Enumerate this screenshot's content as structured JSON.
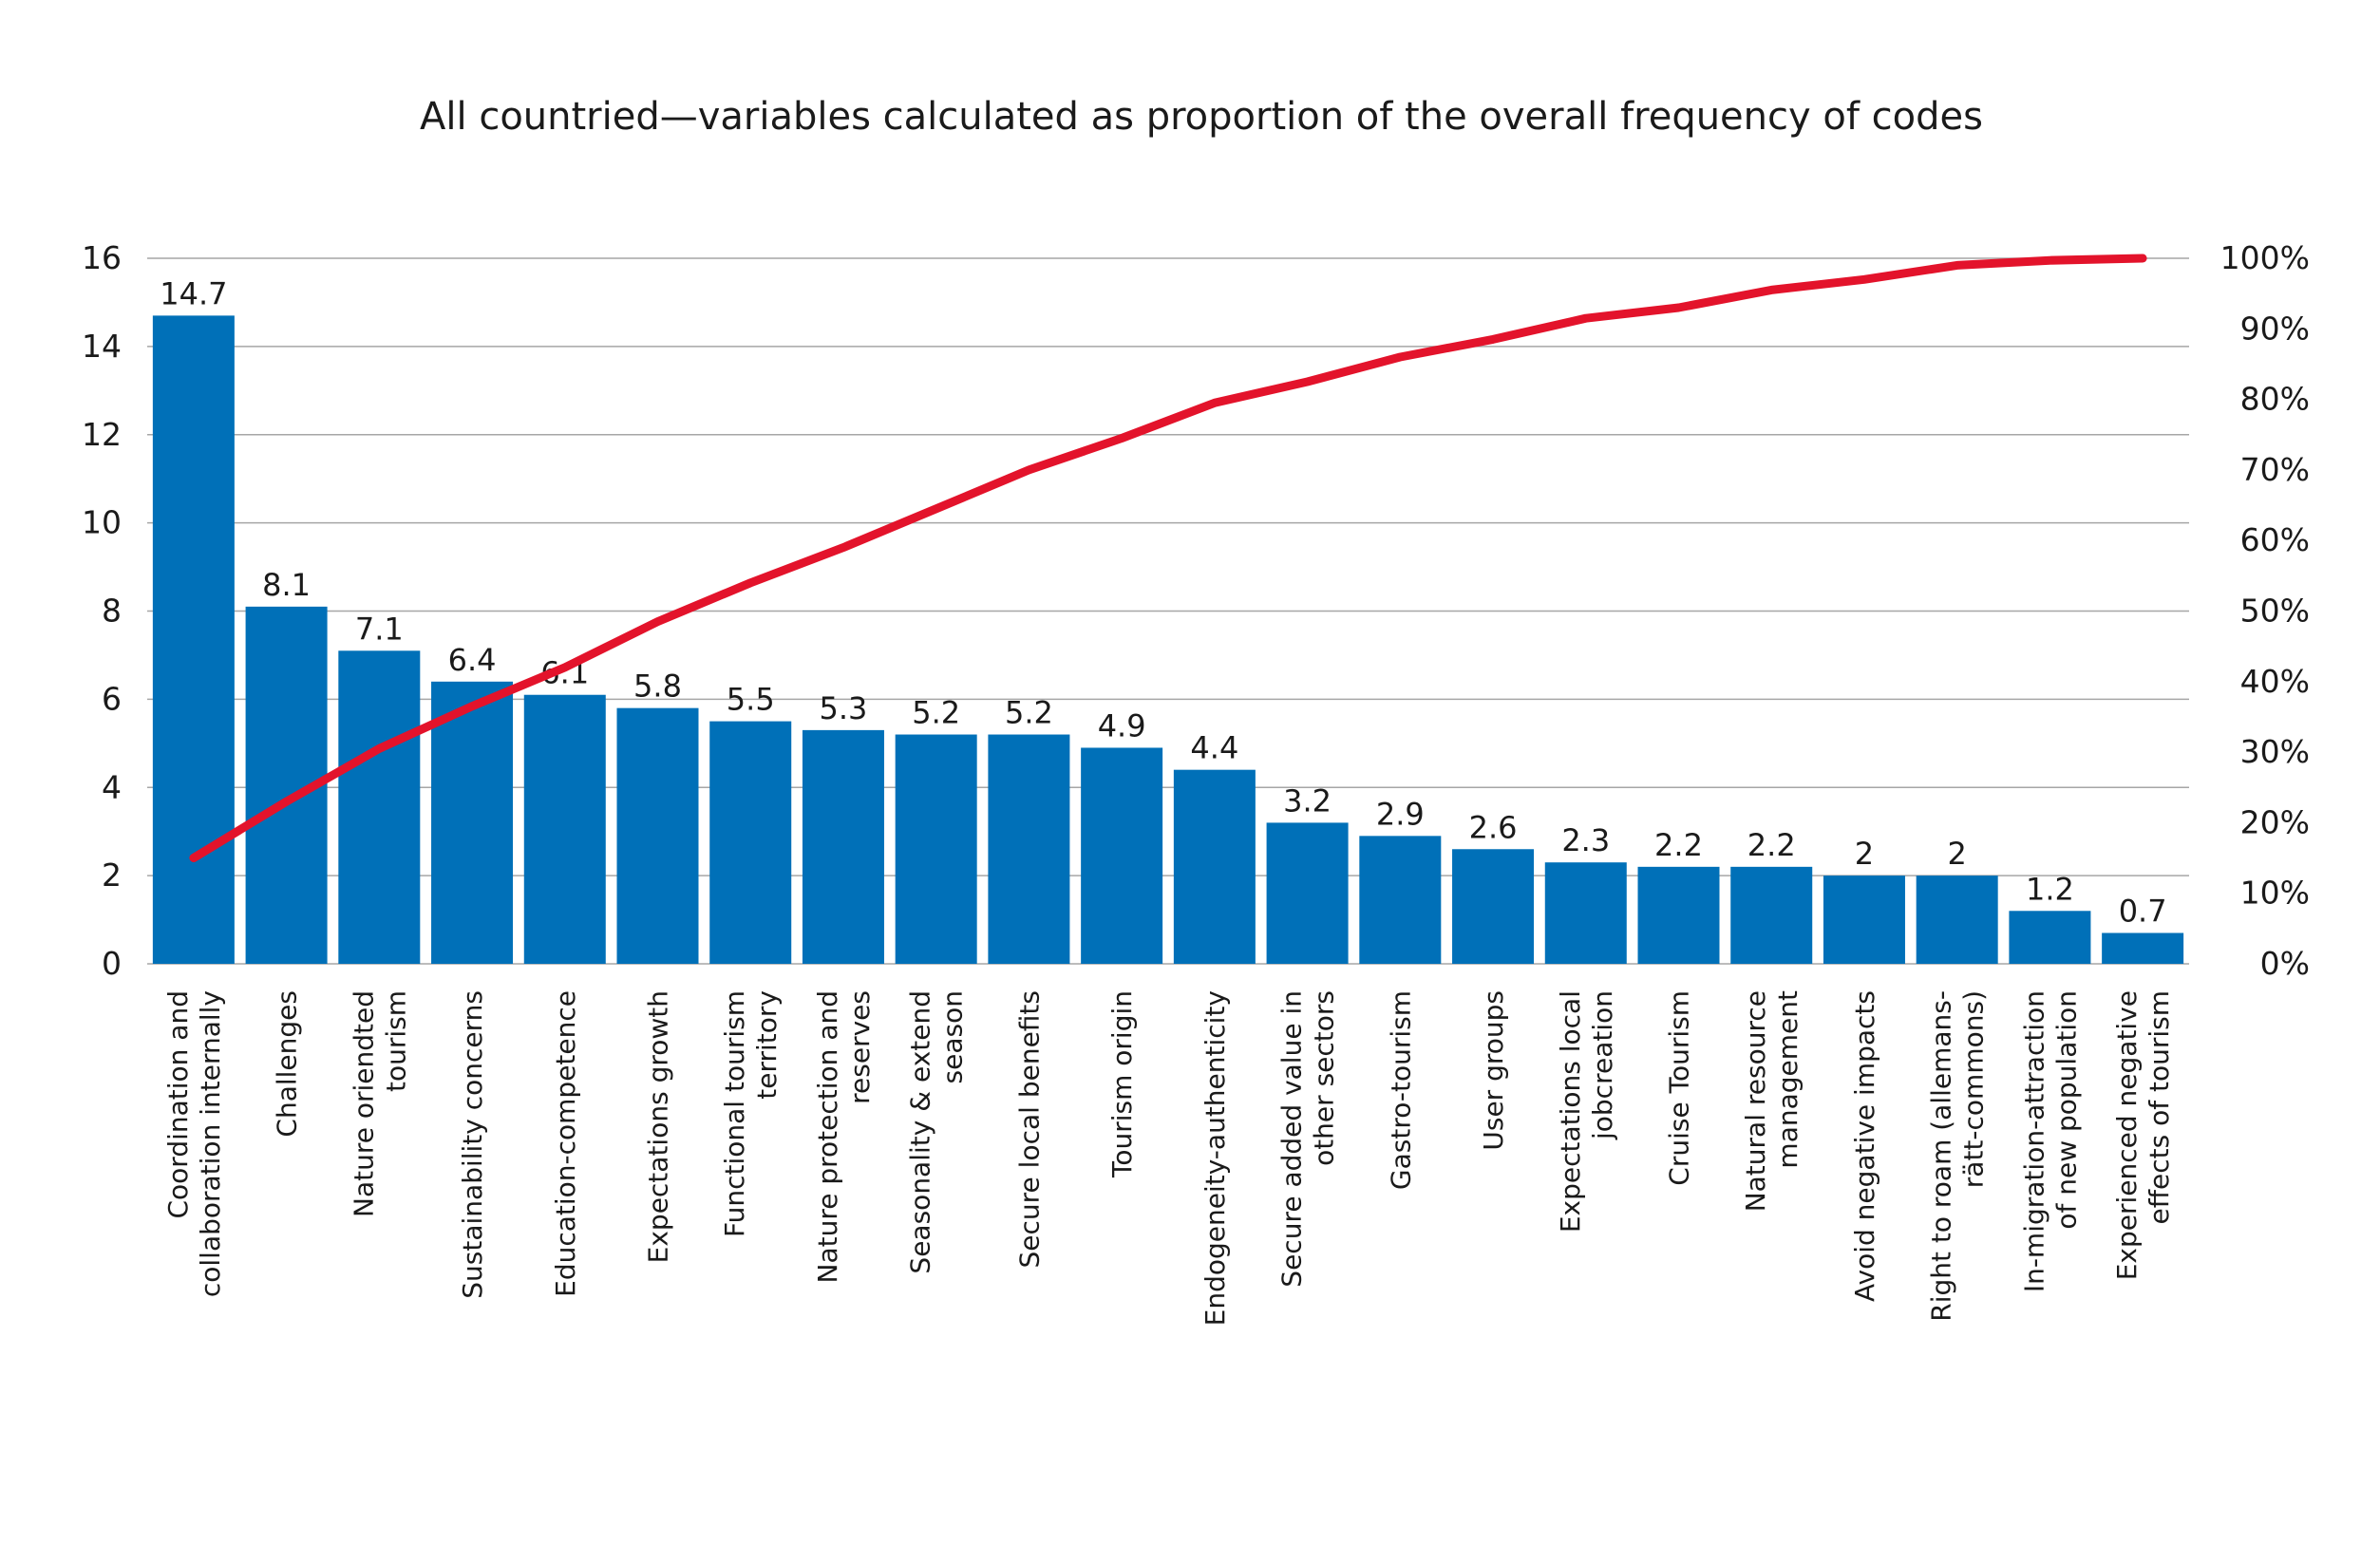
{
  "chart_data": {
    "type": "bar",
    "title": "All countried—variables calculated as proportion of the overall frequency of codes",
    "categories": [
      [
        "Coordination and",
        "collaboration internally"
      ],
      [
        "Challenges"
      ],
      [
        "Nature oriendted",
        "tourism"
      ],
      [
        "Sustainability concerns"
      ],
      [
        "Education-competence"
      ],
      [
        "Expectations growth"
      ],
      [
        "Functional tourism",
        "territory"
      ],
      [
        "Nature protection and",
        "reserves"
      ],
      [
        "Seasonality & extend",
        "season"
      ],
      [
        "Secure local benefits"
      ],
      [
        "Tourism origin"
      ],
      [
        "Endogeneity-authenticity"
      ],
      [
        "Secure added value in",
        "other sectors"
      ],
      [
        "Gastro-tourism"
      ],
      [
        "User groups"
      ],
      [
        "Expectations local",
        "jobcreation"
      ],
      [
        "Cruise Tourism"
      ],
      [
        "Natural resource",
        "management"
      ],
      [
        "Avoid negative impacts"
      ],
      [
        "Right to roam (allemans-",
        "rätt-commons)"
      ],
      [
        "In-migration-attraction",
        "of new population"
      ],
      [
        "Experienced negative",
        "effects of tourism"
      ]
    ],
    "series": [
      {
        "type": "bar",
        "values": [
          14.7,
          8.1,
          7.1,
          6.4,
          6.1,
          5.8,
          5.5,
          5.3,
          5.2,
          5.2,
          4.9,
          4.4,
          3.2,
          2.9,
          2.6,
          2.3,
          2.2,
          2.2,
          2,
          2,
          1.2,
          0.7
        ],
        "value_labels": [
          "14.7",
          "8.1",
          "7.1",
          "6.4",
          "6.1",
          "5.8",
          "5.5",
          "5.3",
          "5.2",
          "5.2",
          "4.9",
          "4.4",
          "3.2",
          "2.9",
          "2.6",
          "2.3",
          "2.2",
          "2.2",
          "2",
          "2",
          "1.2",
          "0.7"
        ],
        "color": "#0070b8",
        "axis": "left"
      },
      {
        "type": "line",
        "values": [
          15,
          23,
          30.5,
          36.5,
          42,
          48.5,
          54,
          59,
          64.5,
          70,
          74.5,
          79.5,
          82.5,
          86,
          88.5,
          91.5,
          93,
          95.5,
          97,
          99,
          99.7,
          100
        ],
        "color": "#e3132b",
        "axis": "right"
      }
    ],
    "y_left": {
      "ylim": [
        0,
        16
      ],
      "ticks": [
        0,
        2,
        4,
        6,
        8,
        10,
        12,
        14,
        16
      ],
      "tick_labels": [
        "0",
        "2",
        "4",
        "6",
        "8",
        "10",
        "12",
        "14",
        "16"
      ]
    },
    "y_right": {
      "ylim": [
        0,
        100
      ],
      "ticks": [
        0,
        10,
        20,
        30,
        40,
        50,
        60,
        70,
        80,
        90,
        100
      ],
      "tick_labels": [
        "0%",
        "10%",
        "20%",
        "30%",
        "40%",
        "50%",
        "60%",
        "70%",
        "80%",
        "90%",
        "100%"
      ]
    },
    "xlabel": "",
    "ylabel": "",
    "grid": true,
    "legend": "none"
  }
}
